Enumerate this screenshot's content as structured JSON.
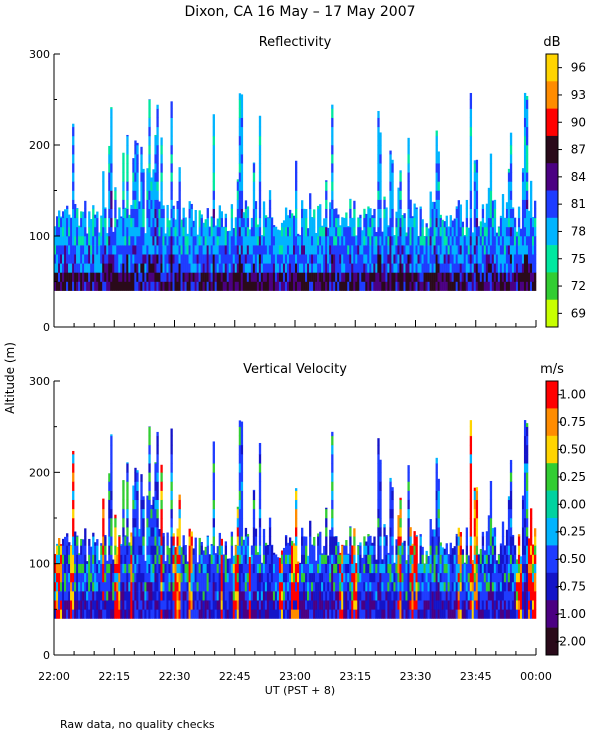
{
  "title": "Dixon, CA 16 May – 17 May 2007",
  "footer_note": "Raw data, no quality checks",
  "chart_data": [
    {
      "type": "heatmap",
      "title": "Reflectivity",
      "xlabel": "UT  (PST + 8)",
      "ylabel": "Altitude (m)",
      "xlim": [
        0,
        120
      ],
      "ylim": [
        0,
        300
      ],
      "x_ticks": [
        "22:00",
        "22:15",
        "22:30",
        "22:45",
        "23:00",
        "23:15",
        "23:30",
        "23:45",
        "00:00"
      ],
      "y_ticks": [
        0,
        100,
        200,
        300
      ],
      "colorbar_unit": "dB",
      "colorbar_labels": [
        "96",
        "93",
        "90",
        "87",
        "84",
        "81",
        "78",
        "75",
        "72",
        "69"
      ],
      "colorbar_colors": [
        "#ffd400",
        "#ff8c00",
        "#ff0000",
        "#2a0a1a",
        "#4b0082",
        "#1e3cff",
        "#00b4ff",
        "#00e8a0",
        "#32cd32",
        "#c8ff00"
      ],
      "colorbar_range": [
        67.5,
        97.5
      ],
      "base_altitude": 40,
      "main_layer_top": 120,
      "max_echo_top": 260
    },
    {
      "type": "heatmap",
      "title": "Vertical Velocity",
      "xlabel": "UT  (PST + 8)",
      "ylabel": "Altitude (m)",
      "xlim": [
        0,
        120
      ],
      "ylim": [
        0,
        300
      ],
      "x_ticks": [
        "22:00",
        "22:15",
        "22:30",
        "22:45",
        "23:00",
        "23:15",
        "23:30",
        "23:45",
        "00:00"
      ],
      "y_ticks": [
        0,
        100,
        200,
        300
      ],
      "colorbar_unit": "m/s",
      "colorbar_labels": [
        "1.00",
        "0.75",
        "0.50",
        "0.25",
        "0.00",
        "-0.25",
        "-0.50",
        "-0.75",
        "-1.00",
        "-2.00"
      ],
      "colorbar_colors": [
        "#ff0000",
        "#ff8c00",
        "#ffd400",
        "#32cd32",
        "#00d2a0",
        "#00b4ff",
        "#1e3cff",
        "#1414c8",
        "#4b0082",
        "#2a0a1a"
      ],
      "colorbar_range": [
        -2.0,
        1.0
      ],
      "base_altitude": 40,
      "main_layer_top": 120,
      "max_echo_top": 260
    }
  ]
}
